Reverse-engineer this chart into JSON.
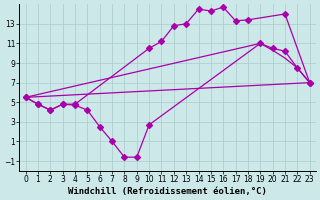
{
  "xlabel": "Windchill (Refroidissement éolien,°C)",
  "background_color": "#cce8e8",
  "grid_color": "#aacccc",
  "line_color": "#aa00aa",
  "xlim": [
    -0.5,
    23.5
  ],
  "ylim": [
    -2,
    15
  ],
  "xticks": [
    0,
    1,
    2,
    3,
    4,
    5,
    6,
    7,
    8,
    9,
    10,
    11,
    12,
    13,
    14,
    15,
    16,
    17,
    18,
    19,
    20,
    21,
    22,
    23
  ],
  "yticks": [
    -1,
    1,
    3,
    5,
    7,
    9,
    11,
    13
  ],
  "line1_x": [
    0,
    1,
    2,
    3,
    4,
    10,
    11,
    12,
    13,
    14,
    15,
    16,
    17,
    18,
    21,
    23
  ],
  "line1_y": [
    5.5,
    4.8,
    4.2,
    4.8,
    4.8,
    10.5,
    11.2,
    12.8,
    13.0,
    14.5,
    14.3,
    14.7,
    13.3,
    13.4,
    14.0,
    7.0
  ],
  "line2_x": [
    0,
    1,
    2,
    3,
    4,
    5,
    6,
    7,
    8,
    9,
    10,
    19,
    20,
    21,
    22,
    23
  ],
  "line2_y": [
    5.5,
    4.8,
    4.2,
    4.8,
    4.7,
    4.2,
    2.5,
    1.0,
    -0.6,
    -0.6,
    2.7,
    11.0,
    10.5,
    10.2,
    8.5,
    7.0
  ],
  "line3_x": [
    0,
    23
  ],
  "line3_y": [
    5.5,
    7.0
  ],
  "line4_x": [
    0,
    19,
    20,
    21,
    22,
    23
  ],
  "line4_y": [
    5.5,
    11.0,
    10.3,
    9.5,
    8.5,
    7.0
  ],
  "markersize": 3,
  "linewidth": 0.9,
  "tick_fontsize": 5.5,
  "xlabel_fontsize": 6.5
}
